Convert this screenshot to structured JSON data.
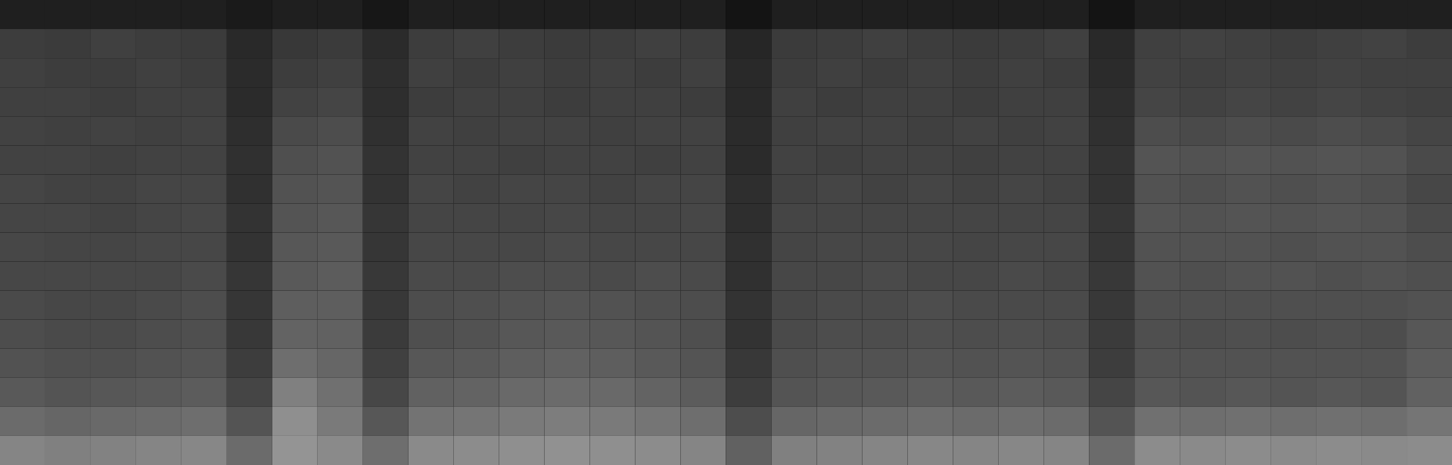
{
  "chart_data": {
    "type": "heatmap",
    "tick_labels": false,
    "zlim": [
      0,
      100
    ],
    "cells": [
      [
        12,
        12,
        12,
        12,
        12,
        10,
        12,
        12,
        9,
        12,
        12,
        12,
        12,
        12,
        12,
        12,
        8,
        12,
        12,
        12,
        12,
        12,
        12,
        12,
        8,
        12,
        12,
        12,
        12,
        12,
        12,
        12
      ],
      [
        24,
        23,
        25,
        24,
        23,
        16,
        22,
        23,
        17,
        24,
        25,
        24,
        23,
        24,
        25,
        24,
        15,
        23,
        24,
        25,
        24,
        23,
        24,
        25,
        16,
        25,
        26,
        25,
        24,
        25,
        26,
        24
      ],
      [
        25,
        24,
        24,
        25,
        24,
        17,
        24,
        25,
        18,
        25,
        24,
        25,
        24,
        25,
        24,
        25,
        16,
        24,
        25,
        24,
        25,
        24,
        25,
        24,
        17,
        26,
        25,
        26,
        25,
        26,
        25,
        25
      ],
      [
        25,
        25,
        24,
        25,
        25,
        17,
        26,
        27,
        18,
        24,
        25,
        25,
        24,
        25,
        25,
        24,
        16,
        25,
        24,
        25,
        25,
        24,
        25,
        25,
        18,
        27,
        26,
        27,
        26,
        27,
        26,
        25
      ],
      [
        26,
        25,
        26,
        25,
        26,
        18,
        29,
        30,
        19,
        26,
        25,
        26,
        26,
        25,
        26,
        26,
        17,
        25,
        26,
        26,
        25,
        26,
        25,
        26,
        19,
        30,
        29,
        30,
        29,
        30,
        29,
        27
      ],
      [
        26,
        26,
        25,
        26,
        26,
        19,
        31,
        32,
        20,
        26,
        26,
        25,
        26,
        26,
        25,
        26,
        17,
        26,
        25,
        26,
        26,
        25,
        26,
        26,
        20,
        33,
        32,
        33,
        32,
        33,
        32,
        29
      ],
      [
        27,
        26,
        26,
        27,
        27,
        19,
        32,
        33,
        20,
        27,
        26,
        27,
        27,
        26,
        27,
        27,
        18,
        26,
        27,
        26,
        27,
        26,
        27,
        26,
        20,
        32,
        31,
        32,
        31,
        32,
        31,
        28
      ],
      [
        27,
        27,
        26,
        27,
        28,
        20,
        33,
        34,
        21,
        27,
        27,
        27,
        28,
        27,
        27,
        28,
        18,
        27,
        27,
        27,
        27,
        27,
        27,
        27,
        21,
        33,
        32,
        33,
        32,
        33,
        32,
        29
      ],
      [
        28,
        27,
        27,
        28,
        28,
        20,
        34,
        35,
        21,
        28,
        28,
        28,
        29,
        28,
        28,
        28,
        19,
        27,
        28,
        28,
        28,
        27,
        28,
        28,
        21,
        32,
        32,
        32,
        31,
        32,
        32,
        30
      ],
      [
        28,
        28,
        28,
        28,
        29,
        21,
        35,
        36,
        22,
        29,
        29,
        30,
        30,
        29,
        30,
        29,
        19,
        28,
        28,
        29,
        28,
        28,
        29,
        28,
        22,
        32,
        31,
        32,
        32,
        31,
        32,
        31
      ],
      [
        29,
        28,
        28,
        29,
        30,
        21,
        37,
        37,
        22,
        30,
        31,
        32,
        33,
        32,
        31,
        30,
        20,
        28,
        29,
        29,
        30,
        29,
        29,
        29,
        22,
        31,
        31,
        31,
        31,
        31,
        31,
        32
      ],
      [
        30,
        29,
        29,
        30,
        31,
        22,
        39,
        38,
        23,
        31,
        32,
        34,
        35,
        34,
        33,
        31,
        20,
        29,
        30,
        30,
        31,
        30,
        31,
        30,
        23,
        31,
        30,
        31,
        30,
        31,
        30,
        34
      ],
      [
        32,
        31,
        31,
        32,
        33,
        24,
        43,
        40,
        25,
        34,
        35,
        37,
        38,
        37,
        35,
        33,
        22,
        31,
        32,
        32,
        33,
        32,
        33,
        32,
        24,
        32,
        32,
        32,
        32,
        32,
        32,
        36
      ],
      [
        35,
        33,
        34,
        35,
        36,
        27,
        50,
        44,
        28,
        38,
        39,
        41,
        42,
        41,
        39,
        36,
        24,
        33,
        34,
        35,
        36,
        35,
        36,
        35,
        27,
        34,
        33,
        34,
        33,
        34,
        33,
        38
      ],
      [
        42,
        40,
        41,
        42,
        43,
        33,
        56,
        48,
        34,
        45,
        46,
        48,
        49,
        48,
        46,
        43,
        30,
        40,
        41,
        42,
        43,
        42,
        43,
        42,
        33,
        44,
        43,
        44,
        43,
        44,
        43,
        46
      ],
      [
        52,
        50,
        51,
        52,
        53,
        42,
        58,
        54,
        43,
        54,
        55,
        56,
        57,
        56,
        55,
        52,
        38,
        50,
        51,
        52,
        53,
        52,
        53,
        52,
        42,
        55,
        54,
        55,
        54,
        55,
        54,
        55
      ]
    ]
  }
}
